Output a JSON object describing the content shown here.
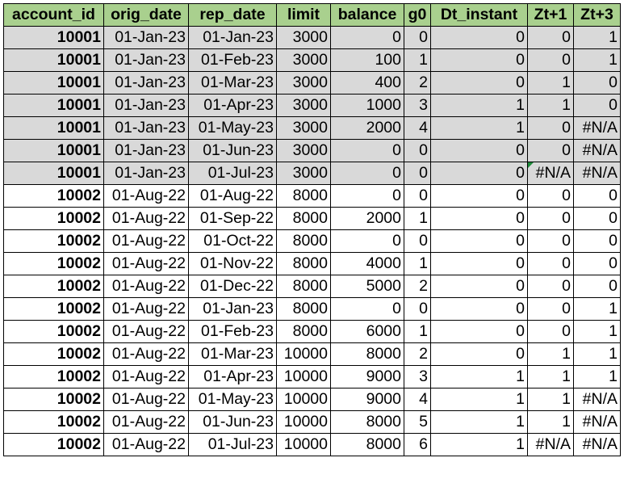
{
  "table": {
    "headers": [
      "account_id",
      "orig_date",
      "rep_date",
      "limit",
      "balance",
      "g0",
      "Dt_instant",
      "Zt+1",
      "Zt+3"
    ],
    "rows": [
      {
        "cells": [
          "10001",
          "01-Jan-23",
          "01-Jan-23",
          "3000",
          "0",
          "0",
          "0",
          "0",
          "1"
        ],
        "group": 1
      },
      {
        "cells": [
          "10001",
          "01-Jan-23",
          "01-Feb-23",
          "3000",
          "100",
          "1",
          "0",
          "0",
          "1"
        ],
        "group": 1
      },
      {
        "cells": [
          "10001",
          "01-Jan-23",
          "01-Mar-23",
          "3000",
          "400",
          "2",
          "0",
          "1",
          "0"
        ],
        "group": 1
      },
      {
        "cells": [
          "10001",
          "01-Jan-23",
          "01-Apr-23",
          "3000",
          "1000",
          "3",
          "1",
          "1",
          "0"
        ],
        "group": 1
      },
      {
        "cells": [
          "10001",
          "01-Jan-23",
          "01-May-23",
          "3000",
          "2000",
          "4",
          "1",
          "0",
          "#N/A"
        ],
        "group": 1
      },
      {
        "cells": [
          "10001",
          "01-Jan-23",
          "01-Jun-23",
          "3000",
          "0",
          "0",
          "0",
          "0",
          "#N/A"
        ],
        "group": 1
      },
      {
        "cells": [
          "10001",
          "01-Jan-23",
          "01-Jul-23",
          "3000",
          "0",
          "0",
          "0",
          "#N/A",
          "#N/A"
        ],
        "group": 1
      },
      {
        "cells": [
          "10002",
          "01-Aug-22",
          "01-Aug-22",
          "8000",
          "0",
          "0",
          "0",
          "0",
          "0"
        ],
        "group": 2
      },
      {
        "cells": [
          "10002",
          "01-Aug-22",
          "01-Sep-22",
          "8000",
          "2000",
          "1",
          "0",
          "0",
          "0"
        ],
        "group": 2
      },
      {
        "cells": [
          "10002",
          "01-Aug-22",
          "01-Oct-22",
          "8000",
          "0",
          "0",
          "0",
          "0",
          "0"
        ],
        "group": 2
      },
      {
        "cells": [
          "10002",
          "01-Aug-22",
          "01-Nov-22",
          "8000",
          "4000",
          "1",
          "0",
          "0",
          "0"
        ],
        "group": 2
      },
      {
        "cells": [
          "10002",
          "01-Aug-22",
          "01-Dec-22",
          "8000",
          "5000",
          "2",
          "0",
          "0",
          "0"
        ],
        "group": 2
      },
      {
        "cells": [
          "10002",
          "01-Aug-22",
          "01-Jan-23",
          "8000",
          "0",
          "0",
          "0",
          "0",
          "1"
        ],
        "group": 2
      },
      {
        "cells": [
          "10002",
          "01-Aug-22",
          "01-Feb-23",
          "8000",
          "6000",
          "1",
          "0",
          "0",
          "1"
        ],
        "group": 2
      },
      {
        "cells": [
          "10002",
          "01-Aug-22",
          "01-Mar-23",
          "10000",
          "8000",
          "2",
          "0",
          "1",
          "1"
        ],
        "group": 2
      },
      {
        "cells": [
          "10002",
          "01-Aug-22",
          "01-Apr-23",
          "10000",
          "9000",
          "3",
          "1",
          "1",
          "1"
        ],
        "group": 2
      },
      {
        "cells": [
          "10002",
          "01-Aug-22",
          "01-May-23",
          "10000",
          "9000",
          "4",
          "1",
          "1",
          "#N/A"
        ],
        "group": 2
      },
      {
        "cells": [
          "10002",
          "01-Aug-22",
          "01-Jun-23",
          "10000",
          "8000",
          "5",
          "1",
          "1",
          "#N/A"
        ],
        "group": 2
      },
      {
        "cells": [
          "10002",
          "01-Aug-22",
          "01-Jul-23",
          "10000",
          "8000",
          "6",
          "1",
          "#N/A",
          "#N/A"
        ],
        "group": 2
      }
    ],
    "flagged_cell": {
      "row": 6,
      "col": 7
    },
    "colors": {
      "header_fill": "#a9d08e",
      "group1_fill": "#d9d9d9",
      "group2_fill": "#ffffff",
      "error_flag": "#1e8b3a"
    }
  }
}
